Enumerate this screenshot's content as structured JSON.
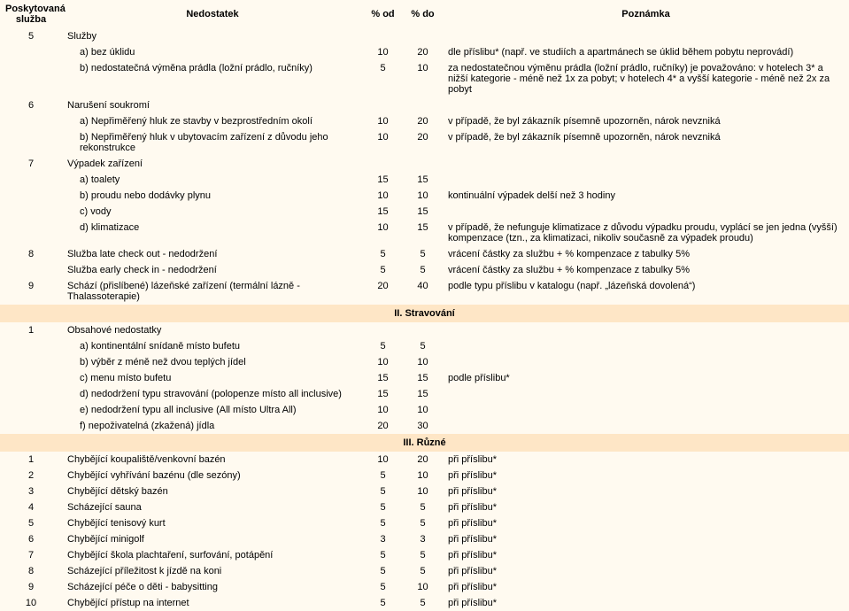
{
  "headers": {
    "sluzba": "Poskytovaná služba",
    "nedostatek": "Nedostatek",
    "od": "% od",
    "do": "% do",
    "poznamka": "Poznámka"
  },
  "top": [
    {
      "num": "5",
      "label": "Služby",
      "rows": [
        {
          "t": "a) bez úklidu",
          "od": "10",
          "do": "20",
          "n": "dle příslibu* (např. ve studiích a apartmánech se úklid během pobytu neprovádí)"
        },
        {
          "t": "b) nedostatečná výměna prádla (ložní prádlo, ručníky)",
          "od": "5",
          "do": "10",
          "n": "za nedostatečnou výměnu prádla (ložní prádlo, ručníky) je považováno: v hotelech 3* a nižší kategorie - méně než 1x za pobyt; v hotelech 4* a vyšší kategorie - méně než 2x za pobyt"
        }
      ]
    },
    {
      "num": "6",
      "label": "Narušení soukromí",
      "rows": [
        {
          "t": "a) Nepřiměřený hluk ze stavby v bezprostředním okolí",
          "od": "10",
          "do": "20",
          "n": "v případě, že byl zákazník písemně upozorněn, nárok nevzniká"
        },
        {
          "t": "b) Nepřiměřený hluk v ubytovacím zařízení z důvodu jeho rekonstrukce",
          "od": "10",
          "do": "20",
          "n": "v případě, že byl zákazník písemně upozorněn, nárok nevzniká"
        }
      ]
    },
    {
      "num": "7",
      "label": "Výpadek zařízení",
      "rows": [
        {
          "t": "a) toalety",
          "od": "15",
          "do": "15",
          "n": ""
        },
        {
          "t": "b) proudu nebo dodávky plynu",
          "od": "10",
          "do": "10",
          "n": "kontinuální výpadek delší než 3 hodiny"
        },
        {
          "t": "c) vody",
          "od": "15",
          "do": "15",
          "n": ""
        },
        {
          "t": "d) klimatizace",
          "od": "10",
          "do": "15",
          "n": "v případě, že nefunguje klimatizace z důvodu výpadku proudu, vyplácí se jen jedna (vyšší) kompenzace (tzn., za klimatizaci, nikoliv současně za výpadek proudu)"
        }
      ]
    },
    {
      "num": "8",
      "label": "Služba late check out - nedodržení",
      "od": "5",
      "do": "5",
      "n": "vrácení částky za službu + % kompenzace z tabulky 5%",
      "flat": true
    },
    {
      "num": "",
      "label": "Služba early check in - nedodržení",
      "od": "5",
      "do": "5",
      "n": "vrácení částky za službu + % kompenzace z tabulky 5%",
      "flat": true
    },
    {
      "num": "9",
      "label": "Schází (přislíbené) lázeňské zařízení (termální lázně - Thalassoterapie)",
      "od": "20",
      "do": "40",
      "n": "podle typu příslibu v katalogu (např. „lázeňská dovolená“)",
      "flat": true
    }
  ],
  "section2": {
    "title": "II. Stravování"
  },
  "strav": [
    {
      "num": "1",
      "label": "Obsahové nedostatky",
      "rows": [
        {
          "t": "a) kontinentální snídaně místo bufetu",
          "od": "5",
          "do": "5",
          "n": ""
        },
        {
          "t": "b) výběr z méně než dvou teplých jídel",
          "od": "10",
          "do": "10",
          "n": ""
        },
        {
          "t": "c) menu místo bufetu",
          "od": "15",
          "do": "15",
          "n": "podle příslibu*"
        },
        {
          "t": "d) nedodržení typu stravování (polopenze místo all inclusive)",
          "od": "15",
          "do": "15",
          "n": ""
        },
        {
          "t": "e) nedodržení typu all inclusive (All místo Ultra All)",
          "od": "10",
          "do": "10",
          "n": ""
        },
        {
          "t": "f) nepoživatelná (zkažená) jídla",
          "od": "20",
          "do": "30",
          "n": ""
        }
      ]
    }
  ],
  "section3": {
    "title": "III. Různé"
  },
  "ruzne": [
    {
      "num": "1",
      "t": "Chybějící koupaliště/venkovní bazén",
      "od": "10",
      "do": "20",
      "n": "při příslibu*"
    },
    {
      "num": "2",
      "t": "Chybějící vyhřívání bazénu (dle sezóny)",
      "od": "5",
      "do": "10",
      "n": "při příslibu*"
    },
    {
      "num": "3",
      "t": "Chybějící dětský bazén",
      "od": "5",
      "do": "10",
      "n": "při příslibu*"
    },
    {
      "num": "4",
      "t": "Scházející sauna",
      "od": "5",
      "do": "5",
      "n": "při příslibu*"
    },
    {
      "num": "5",
      "t": "Chybějící tenisový kurt",
      "od": "5",
      "do": "5",
      "n": "při příslibu*"
    },
    {
      "num": "6",
      "t": "Chybějící minigolf",
      "od": "3",
      "do": "3",
      "n": "při příslibu*"
    },
    {
      "num": "7",
      "t": "Chybějící škola plachtaření, surfování, potápění",
      "od": "5",
      "do": "5",
      "n": "při příslibu*"
    },
    {
      "num": "8",
      "t": "Scházející příležitost k jízdě na koni",
      "od": "5",
      "do": "5",
      "n": "při příslibu*"
    },
    {
      "num": "9",
      "t": "Scházející péče o děti - babysitting",
      "od": "5",
      "do": "10",
      "n": "při příslibu*"
    },
    {
      "num": "10",
      "t": "Chybějící přístup na internet",
      "od": "5",
      "do": "5",
      "n": "při příslibu*"
    }
  ]
}
